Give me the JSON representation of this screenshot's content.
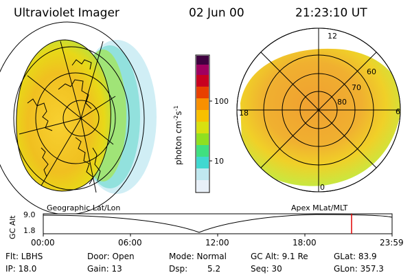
{
  "header": {
    "instrument": "Ultraviolet Imager",
    "date": "02 Jun 00",
    "time": "21:23:10 UT"
  },
  "colorbar": {
    "unit_label": "photon cm",
    "unit_exp1": "-2",
    "unit_s": "s",
    "unit_exp2": "-1",
    "ticks": [
      "100",
      "10"
    ],
    "colors": [
      "#e8f0f8",
      "#c0e8f0",
      "#40d8d0",
      "#40e080",
      "#90e020",
      "#d8e010",
      "#f8c000",
      "#f89000",
      "#e84000",
      "#c80020",
      "#a00060",
      "#400040"
    ]
  },
  "left_panel": {
    "label": "Geographic Lat/Lon",
    "fill_color": "#f0c020"
  },
  "right_panel": {
    "label": "Apex MLat/MLT",
    "lat_labels": [
      "60",
      "70",
      "80"
    ],
    "mlt_labels": {
      "top": "12",
      "left": "18",
      "right": "6",
      "bottom": "0"
    },
    "fill_color": "#f0a830"
  },
  "altitude_plot": {
    "axis_label": "GC Alt",
    "y_ticks": [
      "9.0",
      "1.8"
    ],
    "x_ticks": [
      "00:00",
      "06:00",
      "12:00",
      "18:00",
      "23:59"
    ],
    "marker_color": "#e00000"
  },
  "footer": {
    "flt": "Flt: LBHS",
    "ip": "IP: 18.0",
    "door": "Door: Open",
    "gain": "Gain: 13",
    "mode": "Mode: Normal",
    "dsp_label": "Dsp:",
    "dsp_value": "5.2",
    "gcalt": "GC Alt: 9.1 Re",
    "seq": "Seq: 30",
    "glat": "GLat: 83.9",
    "glon": "GLon: 357.3"
  }
}
